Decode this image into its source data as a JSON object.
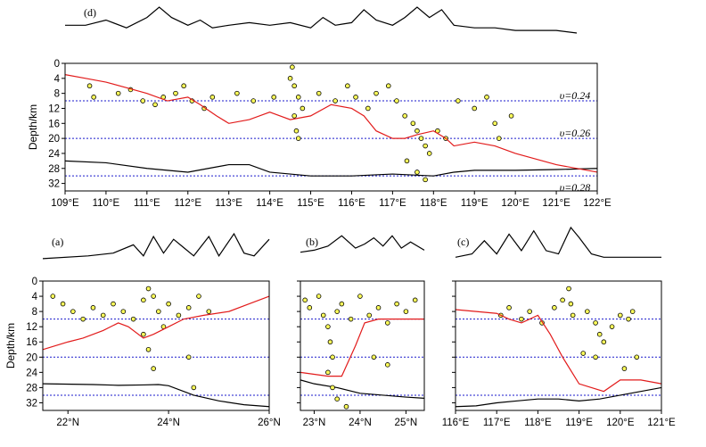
{
  "chart_data": [
    {
      "id": "d",
      "type": "scatter",
      "panel_label": "(d)",
      "ylabel": "Depth/km",
      "xlim": [
        109,
        122
      ],
      "ylim": [
        0,
        34
      ],
      "x_ticks": [
        109,
        110,
        111,
        112,
        113,
        114,
        115,
        116,
        117,
        118,
        119,
        120,
        121,
        122
      ],
      "x_tick_labels": [
        "109°E",
        "110°E",
        "111°E",
        "112°E",
        "113°E",
        "114°E",
        "115°E",
        "116°E",
        "117°E",
        "118°E",
        "119°E",
        "120°E",
        "121°E",
        "122°E"
      ],
      "y_ticks": [
        0,
        4,
        8,
        12,
        16,
        20,
        24,
        28,
        32
      ],
      "y_tick_labels": [
        "0",
        "4",
        "8",
        "12",
        "16",
        "20",
        "24",
        "28",
        "32"
      ],
      "reference_depths": [
        10,
        20,
        30
      ],
      "velocity_labels": [
        {
          "text": "υ=0.24",
          "depth": 8.5
        },
        {
          "text": "υ=0.26",
          "depth": 18.5
        },
        {
          "text": "υ=0.28",
          "depth": 33
        }
      ],
      "topography": {
        "x": [
          109,
          109.5,
          110,
          110.5,
          111,
          111.3,
          111.6,
          112,
          112.3,
          112.6,
          113,
          113.5,
          114,
          114.5,
          115,
          115.3,
          115.6,
          116,
          116.3,
          116.6,
          117,
          117.3,
          117.6,
          117.9,
          118.2,
          118.5,
          119,
          119.5,
          120,
          121,
          121.5
        ],
        "y": [
          0.3,
          0.3,
          0.5,
          0.2,
          0.6,
          1.0,
          0.6,
          0.3,
          0.5,
          0.2,
          0.3,
          0.4,
          0.3,
          0.4,
          0.2,
          0.6,
          0.3,
          0.4,
          0.9,
          0.5,
          0.3,
          0.6,
          1.0,
          0.6,
          0.9,
          0.3,
          0.2,
          0.2,
          0.1,
          0.1,
          0.0
        ]
      },
      "sediment_boundary": {
        "x": [
          109,
          109.5,
          110,
          110.5,
          111,
          111.5,
          112,
          112.3,
          112.7,
          113,
          113.5,
          114,
          114.5,
          115,
          115.5,
          116,
          116.3,
          116.6,
          117,
          117.3,
          117.6,
          118,
          118.3,
          118.5,
          119,
          119.5,
          120,
          121,
          122
        ],
        "y": [
          3,
          4,
          5,
          6.5,
          8,
          10,
          9,
          11,
          14,
          16,
          15,
          13,
          15,
          14,
          11,
          12,
          14,
          18,
          20,
          20,
          19,
          18,
          20,
          22,
          21,
          22,
          24,
          27,
          29
        ]
      },
      "moho": {
        "x": [
          109,
          110,
          111,
          112,
          112.5,
          113,
          113.5,
          114,
          115,
          116,
          117,
          118,
          118.5,
          119,
          120,
          121,
          122
        ],
        "y": [
          26,
          26.5,
          28,
          29,
          28,
          27,
          27,
          29,
          30,
          30,
          29.5,
          30,
          29,
          28.5,
          28.5,
          28.3,
          28
        ]
      },
      "series": [
        {
          "name": "earthquakes",
          "x": [
            109.6,
            109.7,
            110.3,
            110.6,
            110.9,
            111.2,
            111.4,
            111.7,
            111.9,
            112.1,
            112.4,
            112.6,
            113.2,
            113.6,
            114.1,
            114.5,
            114.6,
            114.7,
            114.8,
            115.2,
            115.6,
            115.9,
            116.1,
            116.4,
            116.6,
            116.9,
            117.1,
            117.3,
            117.5,
            117.6,
            117.7,
            117.8,
            117.9,
            118.1,
            118.3,
            118.6,
            119.0,
            119.3,
            119.5,
            119.6,
            119.9,
            114.55,
            114.6,
            114.65,
            114.7,
            117.35,
            117.6,
            117.8
          ],
          "y": [
            6,
            9,
            8,
            7,
            10,
            11,
            9,
            8,
            6,
            10,
            12,
            9,
            8,
            10,
            9,
            4,
            6,
            9,
            12,
            8,
            10,
            6,
            9,
            12,
            8,
            6,
            10,
            14,
            16,
            18,
            20,
            22,
            24,
            18,
            20,
            10,
            12,
            9,
            16,
            20,
            14,
            1,
            14,
            18,
            20,
            26,
            29,
            31
          ]
        }
      ]
    },
    {
      "id": "a",
      "type": "scatter",
      "panel_label": "(a)",
      "ylabel": "Depth/km",
      "xlim": [
        21.5,
        26
      ],
      "ylim": [
        0,
        34
      ],
      "x_ticks": [
        22,
        24,
        26
      ],
      "x_tick_labels": [
        "22°N",
        "24°N",
        "26°N"
      ],
      "y_ticks": [
        0,
        4,
        8,
        12,
        16,
        20,
        24,
        28,
        32
      ],
      "y_tick_labels": [
        "0",
        "4",
        "8",
        "12",
        "16",
        "20",
        "24",
        "28",
        "32"
      ],
      "reference_depths": [
        10,
        20,
        30
      ],
      "topography": {
        "x": [
          21.5,
          22.4,
          22.9,
          23.3,
          23.5,
          23.7,
          23.9,
          24.1,
          24.3,
          24.5,
          24.8,
          25.0,
          25.3,
          25.5,
          25.7,
          26.0
        ],
        "y": [
          0.1,
          0.2,
          0.3,
          0.6,
          0.2,
          0.9,
          0.3,
          0.8,
          0.5,
          0.2,
          0.9,
          0.2,
          1.0,
          0.3,
          0.2,
          0.8
        ]
      },
      "sediment_boundary": {
        "x": [
          21.5,
          22.0,
          22.3,
          22.7,
          23.0,
          23.2,
          23.5,
          23.7,
          24.0,
          24.3,
          24.7,
          25.2,
          25.6,
          26.0
        ],
        "y": [
          18,
          16,
          15,
          13,
          11,
          12,
          15,
          14,
          12,
          10,
          9,
          8,
          6,
          4
        ]
      },
      "moho": {
        "x": [
          21.5,
          22.5,
          23.0,
          23.5,
          23.8,
          24.0,
          24.5,
          25.0,
          25.5,
          26.0
        ],
        "y": [
          27,
          27.2,
          27.4,
          27.3,
          27.2,
          27.5,
          30,
          31.5,
          32.5,
          33
        ]
      },
      "series": [
        {
          "name": "earthquakes",
          "x": [
            21.7,
            21.9,
            22.1,
            22.3,
            22.5,
            22.7,
            22.9,
            23.1,
            23.3,
            23.5,
            23.6,
            23.7,
            23.8,
            23.9,
            24.0,
            24.2,
            24.4,
            24.6,
            24.8,
            23.7,
            24.4,
            24.5,
            23.5,
            23.6
          ],
          "y": [
            4,
            6,
            8,
            10,
            7,
            9,
            6,
            8,
            10,
            5,
            2,
            4,
            8,
            12,
            6,
            9,
            7,
            4,
            8,
            23,
            20,
            28,
            14,
            18
          ]
        }
      ]
    },
    {
      "id": "b",
      "type": "scatter",
      "panel_label": "(b)",
      "xlim": [
        22.7,
        25.4
      ],
      "ylim": [
        0,
        34
      ],
      "x_ticks": [
        23,
        24,
        25
      ],
      "x_tick_labels": [
        "23°N",
        "24°N",
        "25°N"
      ],
      "y_ticks": [
        0,
        4,
        8,
        12,
        16,
        20,
        24,
        28,
        32
      ],
      "reference_depths": [
        10,
        20,
        30
      ],
      "topography": {
        "x": [
          22.7,
          23.0,
          23.3,
          23.6,
          23.9,
          24.1,
          24.3,
          24.5,
          24.7,
          24.9,
          25.1,
          25.4
        ],
        "y": [
          0.1,
          0.2,
          0.4,
          0.9,
          0.3,
          0.5,
          0.8,
          0.4,
          0.9,
          0.3,
          0.6,
          0.2
        ]
      },
      "sediment_boundary": {
        "x": [
          22.7,
          23.0,
          23.3,
          23.6,
          23.9,
          24.1,
          24.4,
          24.7,
          25.0,
          25.4
        ],
        "y": [
          24,
          24.5,
          25,
          25,
          17,
          11,
          10,
          10,
          10,
          10
        ]
      },
      "moho": {
        "x": [
          22.7,
          23.0,
          23.5,
          24.0,
          24.5,
          25.0,
          25.4
        ],
        "y": [
          26,
          27,
          28,
          29.5,
          30,
          30.5,
          30.8
        ]
      },
      "series": [
        {
          "name": "earthquakes",
          "x": [
            22.8,
            22.9,
            23.1,
            23.2,
            23.3,
            23.35,
            23.4,
            23.5,
            23.6,
            23.8,
            24.0,
            24.2,
            24.4,
            24.6,
            24.8,
            25.0,
            25.2,
            23.3,
            23.4,
            23.5,
            23.7,
            24.6,
            24.3
          ],
          "y": [
            5,
            7,
            4,
            9,
            12,
            16,
            20,
            8,
            6,
            10,
            4,
            9,
            7,
            11,
            6,
            8,
            5,
            24,
            28,
            31,
            33,
            22,
            20
          ]
        }
      ]
    },
    {
      "id": "c",
      "type": "scatter",
      "panel_label": "(c)",
      "xlim": [
        116,
        121
      ],
      "ylim": [
        0,
        34
      ],
      "x_ticks": [
        116,
        117,
        118,
        119,
        120,
        121
      ],
      "x_tick_labels": [
        "116°E",
        "117°E",
        "118°E",
        "119°E",
        "120°E",
        "121°E"
      ],
      "y_ticks": [
        0,
        4,
        8,
        12,
        16,
        20,
        24,
        28,
        32
      ],
      "reference_depths": [
        10,
        20,
        30
      ],
      "topography": {
        "x": [
          116,
          116.4,
          116.7,
          117.0,
          117.3,
          117.6,
          117.9,
          118.2,
          118.5,
          118.8,
          119.0,
          119.3,
          119.6,
          120.0,
          120.5,
          121
        ],
        "y": [
          0.1,
          0.2,
          0.6,
          0.2,
          0.8,
          0.3,
          0.9,
          0.3,
          0.2,
          1.0,
          0.7,
          0.2,
          0.1,
          0.1,
          0.1,
          0.1
        ]
      },
      "sediment_boundary": {
        "x": [
          116,
          116.5,
          117.0,
          117.3,
          117.6,
          117.8,
          118.0,
          118.3,
          118.6,
          119.0,
          119.3,
          119.6,
          120.0,
          120.5,
          121
        ],
        "y": [
          7.5,
          8,
          8.5,
          10,
          11,
          10,
          9,
          14,
          20,
          27,
          28,
          29,
          26,
          26,
          27
        ]
      },
      "moho": {
        "x": [
          116,
          116.5,
          117,
          117.5,
          118,
          118.5,
          119,
          119.5,
          120,
          120.5,
          121
        ],
        "y": [
          33,
          32.8,
          32,
          31.5,
          31,
          31,
          31.5,
          31,
          30,
          29,
          28
        ]
      },
      "series": [
        {
          "name": "earthquakes",
          "x": [
            117.1,
            117.3,
            117.6,
            117.8,
            118.1,
            118.4,
            118.6,
            118.75,
            118.8,
            118.85,
            119.2,
            119.4,
            119.5,
            119.6,
            119.8,
            120.0,
            120.2,
            120.3,
            119.1,
            119.4,
            120.4,
            120.1
          ],
          "y": [
            9,
            7,
            10,
            8,
            11,
            7,
            5,
            2,
            6,
            9,
            8,
            11,
            14,
            16,
            12,
            9,
            10,
            8,
            19,
            20,
            20,
            23
          ]
        }
      ]
    }
  ]
}
